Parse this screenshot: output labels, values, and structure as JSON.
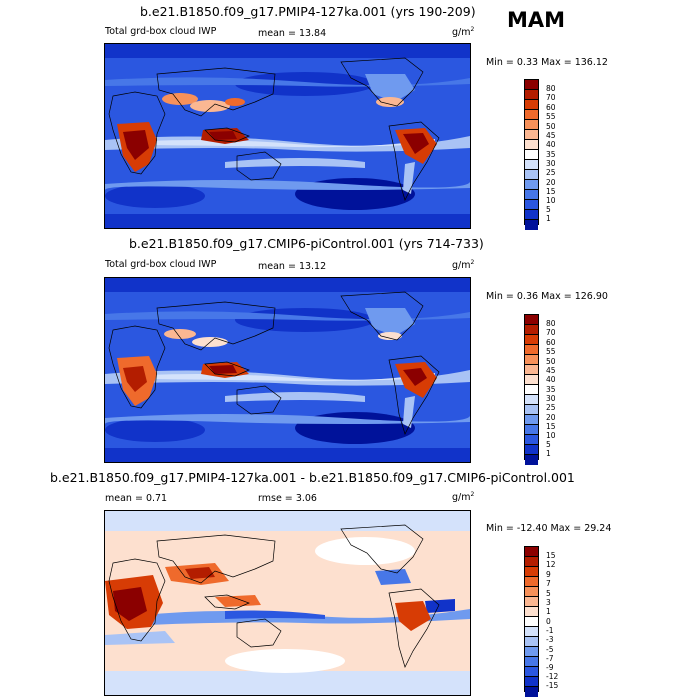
{
  "season": "MAM",
  "panels": [
    {
      "title": "b.e21.B1850.f09_g17.PMIP4-127ka.001 (yrs 190-209)",
      "left_label": "Total grd-box cloud IWP",
      "stat1_label": "mean =",
      "stat1_value": "13.84",
      "units": "g/m",
      "units_exp": "2",
      "min_label": "Min =",
      "min_value": "0.33",
      "max_label": "Max =",
      "max_value": "136.12",
      "colorbar_labels": [
        "80",
        "70",
        "60",
        "55",
        "50",
        "45",
        "40",
        "35",
        "30",
        "25",
        "20",
        "15",
        "10",
        "5",
        "1"
      ]
    },
    {
      "title": "b.e21.B1850.f09_g17.CMIP6-piControl.001 (yrs 714-733)",
      "left_label": "Total grd-box cloud IWP",
      "stat1_label": "mean =",
      "stat1_value": "13.12",
      "units": "g/m",
      "units_exp": "2",
      "min_label": "Min =",
      "min_value": "0.36",
      "max_label": "Max =",
      "max_value": "126.90",
      "colorbar_labels": [
        "80",
        "70",
        "60",
        "55",
        "50",
        "45",
        "40",
        "35",
        "30",
        "25",
        "20",
        "15",
        "10",
        "5",
        "1"
      ]
    },
    {
      "title": "b.e21.B1850.f09_g17.PMIP4-127ka.001 - b.e21.B1850.f09_g17.CMIP6-piControl.001",
      "stat1_label": "mean =",
      "stat1_value": "0.71",
      "stat2_label": "rmse =",
      "stat2_value": "3.06",
      "units": "g/m",
      "units_exp": "2",
      "min_label": "Min =",
      "min_value": "-12.40",
      "max_label": "Max =",
      "max_value": "29.24",
      "colorbar_labels": [
        "15",
        "12",
        "9",
        "7",
        "5",
        "3",
        "1",
        "0",
        "-1",
        "-3",
        "-5",
        "-7",
        "-9",
        "-12",
        "-15"
      ]
    }
  ],
  "colors": {
    "abs_scale": [
      "#8b0000",
      "#b31d00",
      "#d73c05",
      "#ef6a2c",
      "#f7915a",
      "#fbb792",
      "#fde0cf",
      "#ffffff",
      "#d4e2fb",
      "#a9c3f5",
      "#6f9aef",
      "#4777e8",
      "#2b57e0",
      "#1133c9",
      "#00129a"
    ],
    "diff_scale": [
      "#8b0000",
      "#b31d00",
      "#d73c05",
      "#ef6a2c",
      "#f7915a",
      "#fbb792",
      "#fde0cf",
      "#ffffff",
      "#d4e2fb",
      "#a9c3f5",
      "#6f9aef",
      "#4777e8",
      "#2b57e0",
      "#1133c9",
      "#00129a"
    ]
  }
}
